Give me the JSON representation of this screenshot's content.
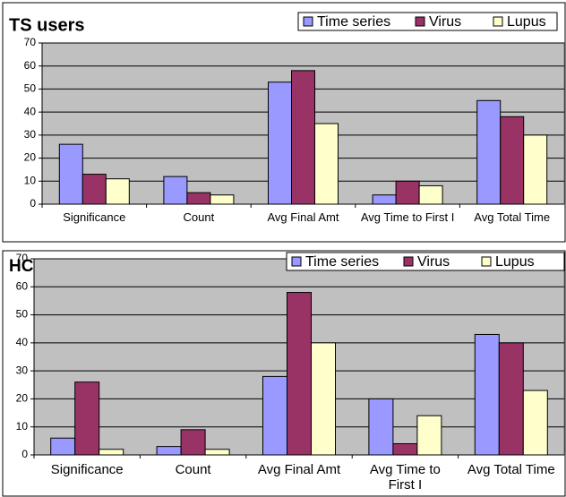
{
  "chart_data": [
    {
      "type": "bar",
      "title": "TS users",
      "categories": [
        "Significance",
        "Count",
        "Avg Final Amt",
        "Avg Time to First I",
        "Avg Total Time"
      ],
      "series": [
        {
          "name": "Time series",
          "color": "#9999ff",
          "values": [
            26,
            12,
            53,
            4,
            45
          ]
        },
        {
          "name": "Virus",
          "color": "#993366",
          "values": [
            13,
            5,
            58,
            10,
            38
          ]
        },
        {
          "name": "Lupus",
          "color": "#ffffcc",
          "values": [
            11,
            4,
            35,
            8,
            30
          ]
        }
      ],
      "ylim": [
        0,
        70
      ],
      "yticks": [
        0,
        10,
        20,
        30,
        40,
        50,
        60,
        70
      ],
      "grid": true,
      "legend": "top-right"
    },
    {
      "type": "bar",
      "title": "HCE users",
      "categories": [
        "Significance",
        "Count",
        "Avg Final Amt",
        "Avg Time to First I",
        "Avg Total Time"
      ],
      "series": [
        {
          "name": "Time series",
          "color": "#9999ff",
          "values": [
            6,
            3,
            28,
            20,
            43
          ]
        },
        {
          "name": "Virus",
          "color": "#993366",
          "values": [
            26,
            9,
            58,
            4,
            40
          ]
        },
        {
          "name": "Lupus",
          "color": "#ffffcc",
          "values": [
            2,
            2,
            40,
            14,
            23
          ]
        }
      ],
      "ylim": [
        0,
        70
      ],
      "yticks": [
        0,
        10,
        20,
        30,
        40,
        50,
        60,
        70
      ],
      "grid": true,
      "legend": "top-right"
    }
  ]
}
